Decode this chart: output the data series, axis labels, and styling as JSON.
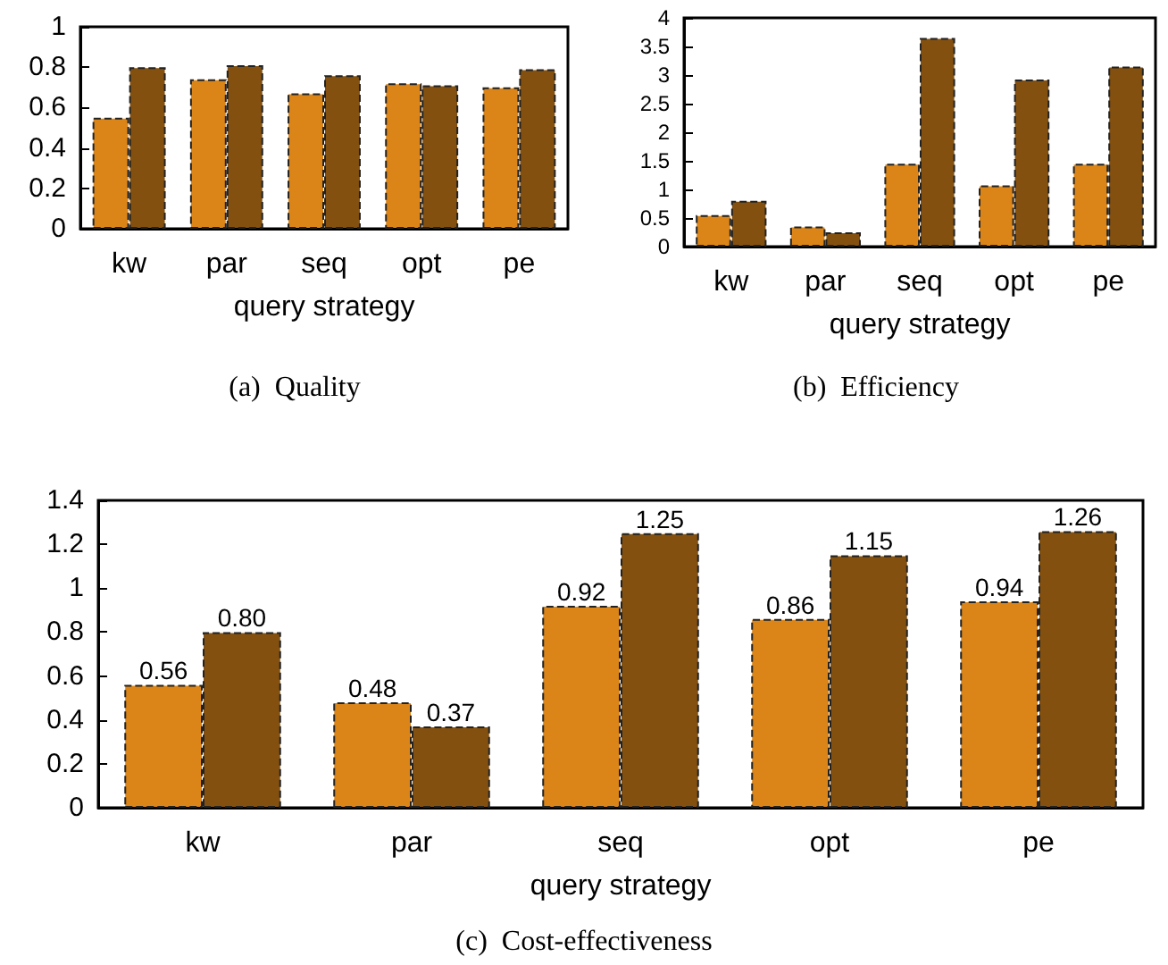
{
  "chart_data": [
    {
      "type": "bar",
      "title": "(a)  Quality",
      "xlabel": "query strategy",
      "categories": [
        "kw",
        "par",
        "seq",
        "opt",
        "pe"
      ],
      "ylim": [
        0,
        1
      ],
      "yticks": [
        0,
        0.2,
        0.4,
        0.6,
        0.8,
        1
      ],
      "series": [
        {
          "color": "#db8518",
          "values": [
            0.55,
            0.74,
            0.67,
            0.72,
            0.7
          ]
        },
        {
          "color": "#83500f",
          "values": [
            0.8,
            0.81,
            0.76,
            0.71,
            0.79
          ]
        }
      ]
    },
    {
      "type": "bar",
      "title": "(b)  Efficiency",
      "xlabel": "query strategy",
      "categories": [
        "kw",
        "par",
        "seq",
        "opt",
        "pe"
      ],
      "ylim": [
        0,
        4
      ],
      "yticks": [
        0,
        0.5,
        1,
        1.5,
        2,
        2.5,
        3,
        3.5,
        4
      ],
      "series": [
        {
          "color": "#db8518",
          "values": [
            0.55,
            0.35,
            1.45,
            1.07,
            1.45
          ]
        },
        {
          "color": "#83500f",
          "values": [
            0.8,
            0.25,
            3.65,
            2.92,
            3.15
          ]
        }
      ]
    },
    {
      "type": "bar",
      "title": "(c)  Cost-effectiveness",
      "xlabel": "query strategy",
      "categories": [
        "kw",
        "par",
        "seq",
        "opt",
        "pe"
      ],
      "ylim": [
        0,
        1.4
      ],
      "yticks": [
        0,
        0.2,
        0.4,
        0.6,
        0.8,
        1,
        1.2,
        1.4
      ],
      "series": [
        {
          "color": "#db8518",
          "values": [
            0.56,
            0.48,
            0.92,
            0.86,
            0.94
          ],
          "value_labels": [
            "0.56",
            "0.48",
            "0.92",
            "0.86",
            "0.94"
          ]
        },
        {
          "color": "#83500f",
          "values": [
            0.8,
            0.37,
            1.25,
            1.15,
            1.26
          ],
          "value_labels": [
            "0.80",
            "0.37",
            "1.25",
            "1.15",
            "1.26"
          ]
        }
      ]
    }
  ]
}
